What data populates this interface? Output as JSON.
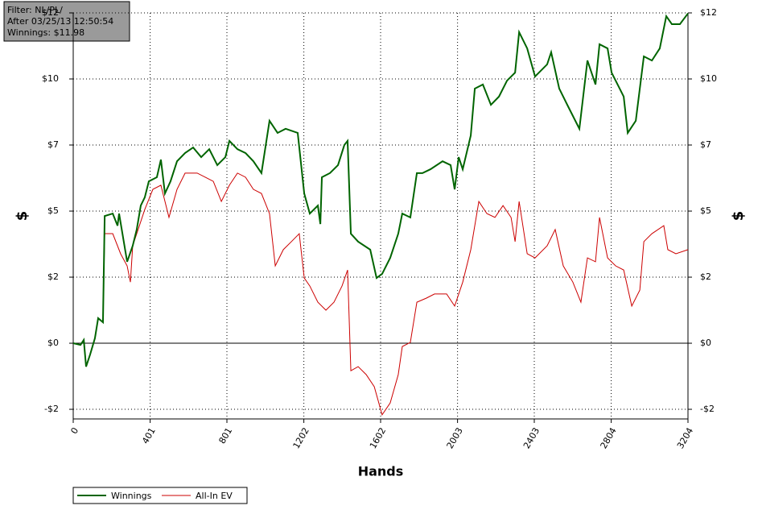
{
  "chart_data": {
    "type": "line",
    "info": [
      "Filter: NL/PL/",
      "After 03/25/13 12:50:54",
      "Winnings: $11.98"
    ],
    "xlabel": "Hands",
    "ylabel": "$",
    "y2label": "$",
    "xlim": [
      0,
      3204
    ],
    "xticks": [
      0,
      401,
      801,
      1202,
      1602,
      2003,
      2403,
      2804,
      3204
    ],
    "ylim": [
      -2.75,
      12
    ],
    "yticks": [
      {
        "value": -2.4,
        "label": "-$2"
      },
      {
        "value": 0,
        "label": "$0"
      },
      {
        "value": 2.4,
        "label": "$2"
      },
      {
        "value": 4.8,
        "label": "$5"
      },
      {
        "value": 7.2,
        "label": "$7"
      },
      {
        "value": 9.6,
        "label": "$10"
      },
      {
        "value": 12,
        "label": "$12"
      }
    ],
    "grid": true,
    "legend": "bottom-left",
    "series": [
      {
        "name": "Winnings",
        "color": "#006400",
        "x": [
          0,
          38,
          55,
          67,
          88,
          113,
          130,
          155,
          164,
          206,
          231,
          239,
          281,
          310,
          331,
          352,
          373,
          394,
          436,
          457,
          478,
          507,
          541,
          583,
          625,
          667,
          709,
          751,
          793,
          814,
          856,
          898,
          939,
          981,
          1023,
          1065,
          1107,
          1170,
          1204,
          1233,
          1275,
          1288,
          1296,
          1338,
          1380,
          1413,
          1430,
          1447,
          1485,
          1548,
          1581,
          1610,
          1652,
          1694,
          1715,
          1757,
          1791,
          1820,
          1862,
          1925,
          1967,
          1988,
          2009,
          2030,
          2072,
          2093,
          2135,
          2177,
          2219,
          2261,
          2303,
          2324,
          2366,
          2407,
          2470,
          2491,
          2533,
          2575,
          2638,
          2680,
          2722,
          2743,
          2785,
          2806,
          2848,
          2869,
          2890,
          2932,
          2974,
          3016,
          3057,
          3091,
          3120,
          3162,
          3204
        ],
        "values": [
          0,
          -0.06,
          0.12,
          -0.85,
          -0.41,
          0.18,
          0.91,
          0.76,
          4.62,
          4.71,
          4.27,
          4.71,
          2.96,
          3.54,
          4.13,
          5.0,
          5.3,
          5.88,
          6.03,
          6.67,
          5.44,
          5.88,
          6.61,
          6.91,
          7.11,
          6.76,
          7.05,
          6.47,
          6.76,
          7.35,
          7.05,
          6.91,
          6.61,
          6.18,
          8.08,
          7.64,
          7.79,
          7.64,
          5.44,
          4.71,
          5.0,
          4.33,
          6.03,
          6.18,
          6.47,
          7.2,
          7.35,
          3.98,
          3.69,
          3.4,
          2.37,
          2.52,
          3.1,
          3.98,
          4.71,
          4.57,
          6.18,
          6.18,
          6.32,
          6.61,
          6.47,
          5.59,
          6.76,
          6.32,
          7.55,
          9.25,
          9.4,
          8.66,
          8.96,
          9.54,
          9.83,
          11.3,
          10.71,
          9.69,
          10.13,
          10.57,
          9.25,
          8.66,
          7.79,
          10.27,
          9.4,
          10.86,
          10.71,
          9.83,
          9.25,
          8.96,
          7.64,
          8.08,
          10.42,
          10.27,
          10.71,
          11.88,
          11.59,
          11.59,
          11.98
        ]
      },
      {
        "name": "All-In EV",
        "color": "#cc0000",
        "x": [
          0,
          38,
          55,
          67,
          88,
          113,
          130,
          155,
          164,
          206,
          247,
          281,
          298,
          310,
          331,
          373,
          415,
          457,
          499,
          541,
          583,
          646,
          688,
          730,
          772,
          814,
          856,
          898,
          939,
          981,
          1023,
          1053,
          1095,
          1137,
          1178,
          1204,
          1233,
          1275,
          1317,
          1359,
          1401,
          1430,
          1447,
          1485,
          1527,
          1569,
          1610,
          1652,
          1694,
          1715,
          1757,
          1791,
          1841,
          1883,
          1946,
          1988,
          2030,
          2072,
          2114,
          2156,
          2198,
          2240,
          2282,
          2303,
          2324,
          2366,
          2407,
          2470,
          2512,
          2554,
          2604,
          2646,
          2680,
          2722,
          2743,
          2785,
          2827,
          2869,
          2911,
          2953,
          2974,
          3016,
          3078,
          3099,
          3141,
          3204
        ],
        "values": [
          0,
          -0.06,
          0.12,
          -0.85,
          -0.41,
          0.18,
          0.91,
          0.76,
          3.98,
          3.98,
          3.25,
          2.81,
          2.22,
          3.54,
          3.98,
          4.86,
          5.59,
          5.74,
          4.57,
          5.59,
          6.18,
          6.18,
          6.03,
          5.88,
          5.15,
          5.74,
          6.18,
          6.03,
          5.59,
          5.44,
          4.71,
          2.81,
          3.4,
          3.69,
          3.98,
          2.37,
          2.08,
          1.49,
          1.2,
          1.49,
          2.08,
          2.66,
          -1.0,
          -0.85,
          -1.14,
          -1.58,
          -2.6,
          -2.17,
          -1.14,
          -0.12,
          0.03,
          1.49,
          1.64,
          1.79,
          1.79,
          1.35,
          2.22,
          3.4,
          5.15,
          4.71,
          4.57,
          5.0,
          4.57,
          3.69,
          5.15,
          3.25,
          3.1,
          3.54,
          4.13,
          2.81,
          2.22,
          1.49,
          3.1,
          2.96,
          4.57,
          3.1,
          2.81,
          2.66,
          1.35,
          1.93,
          3.69,
          3.98,
          4.27,
          3.4,
          3.25,
          3.4
        ]
      }
    ]
  }
}
